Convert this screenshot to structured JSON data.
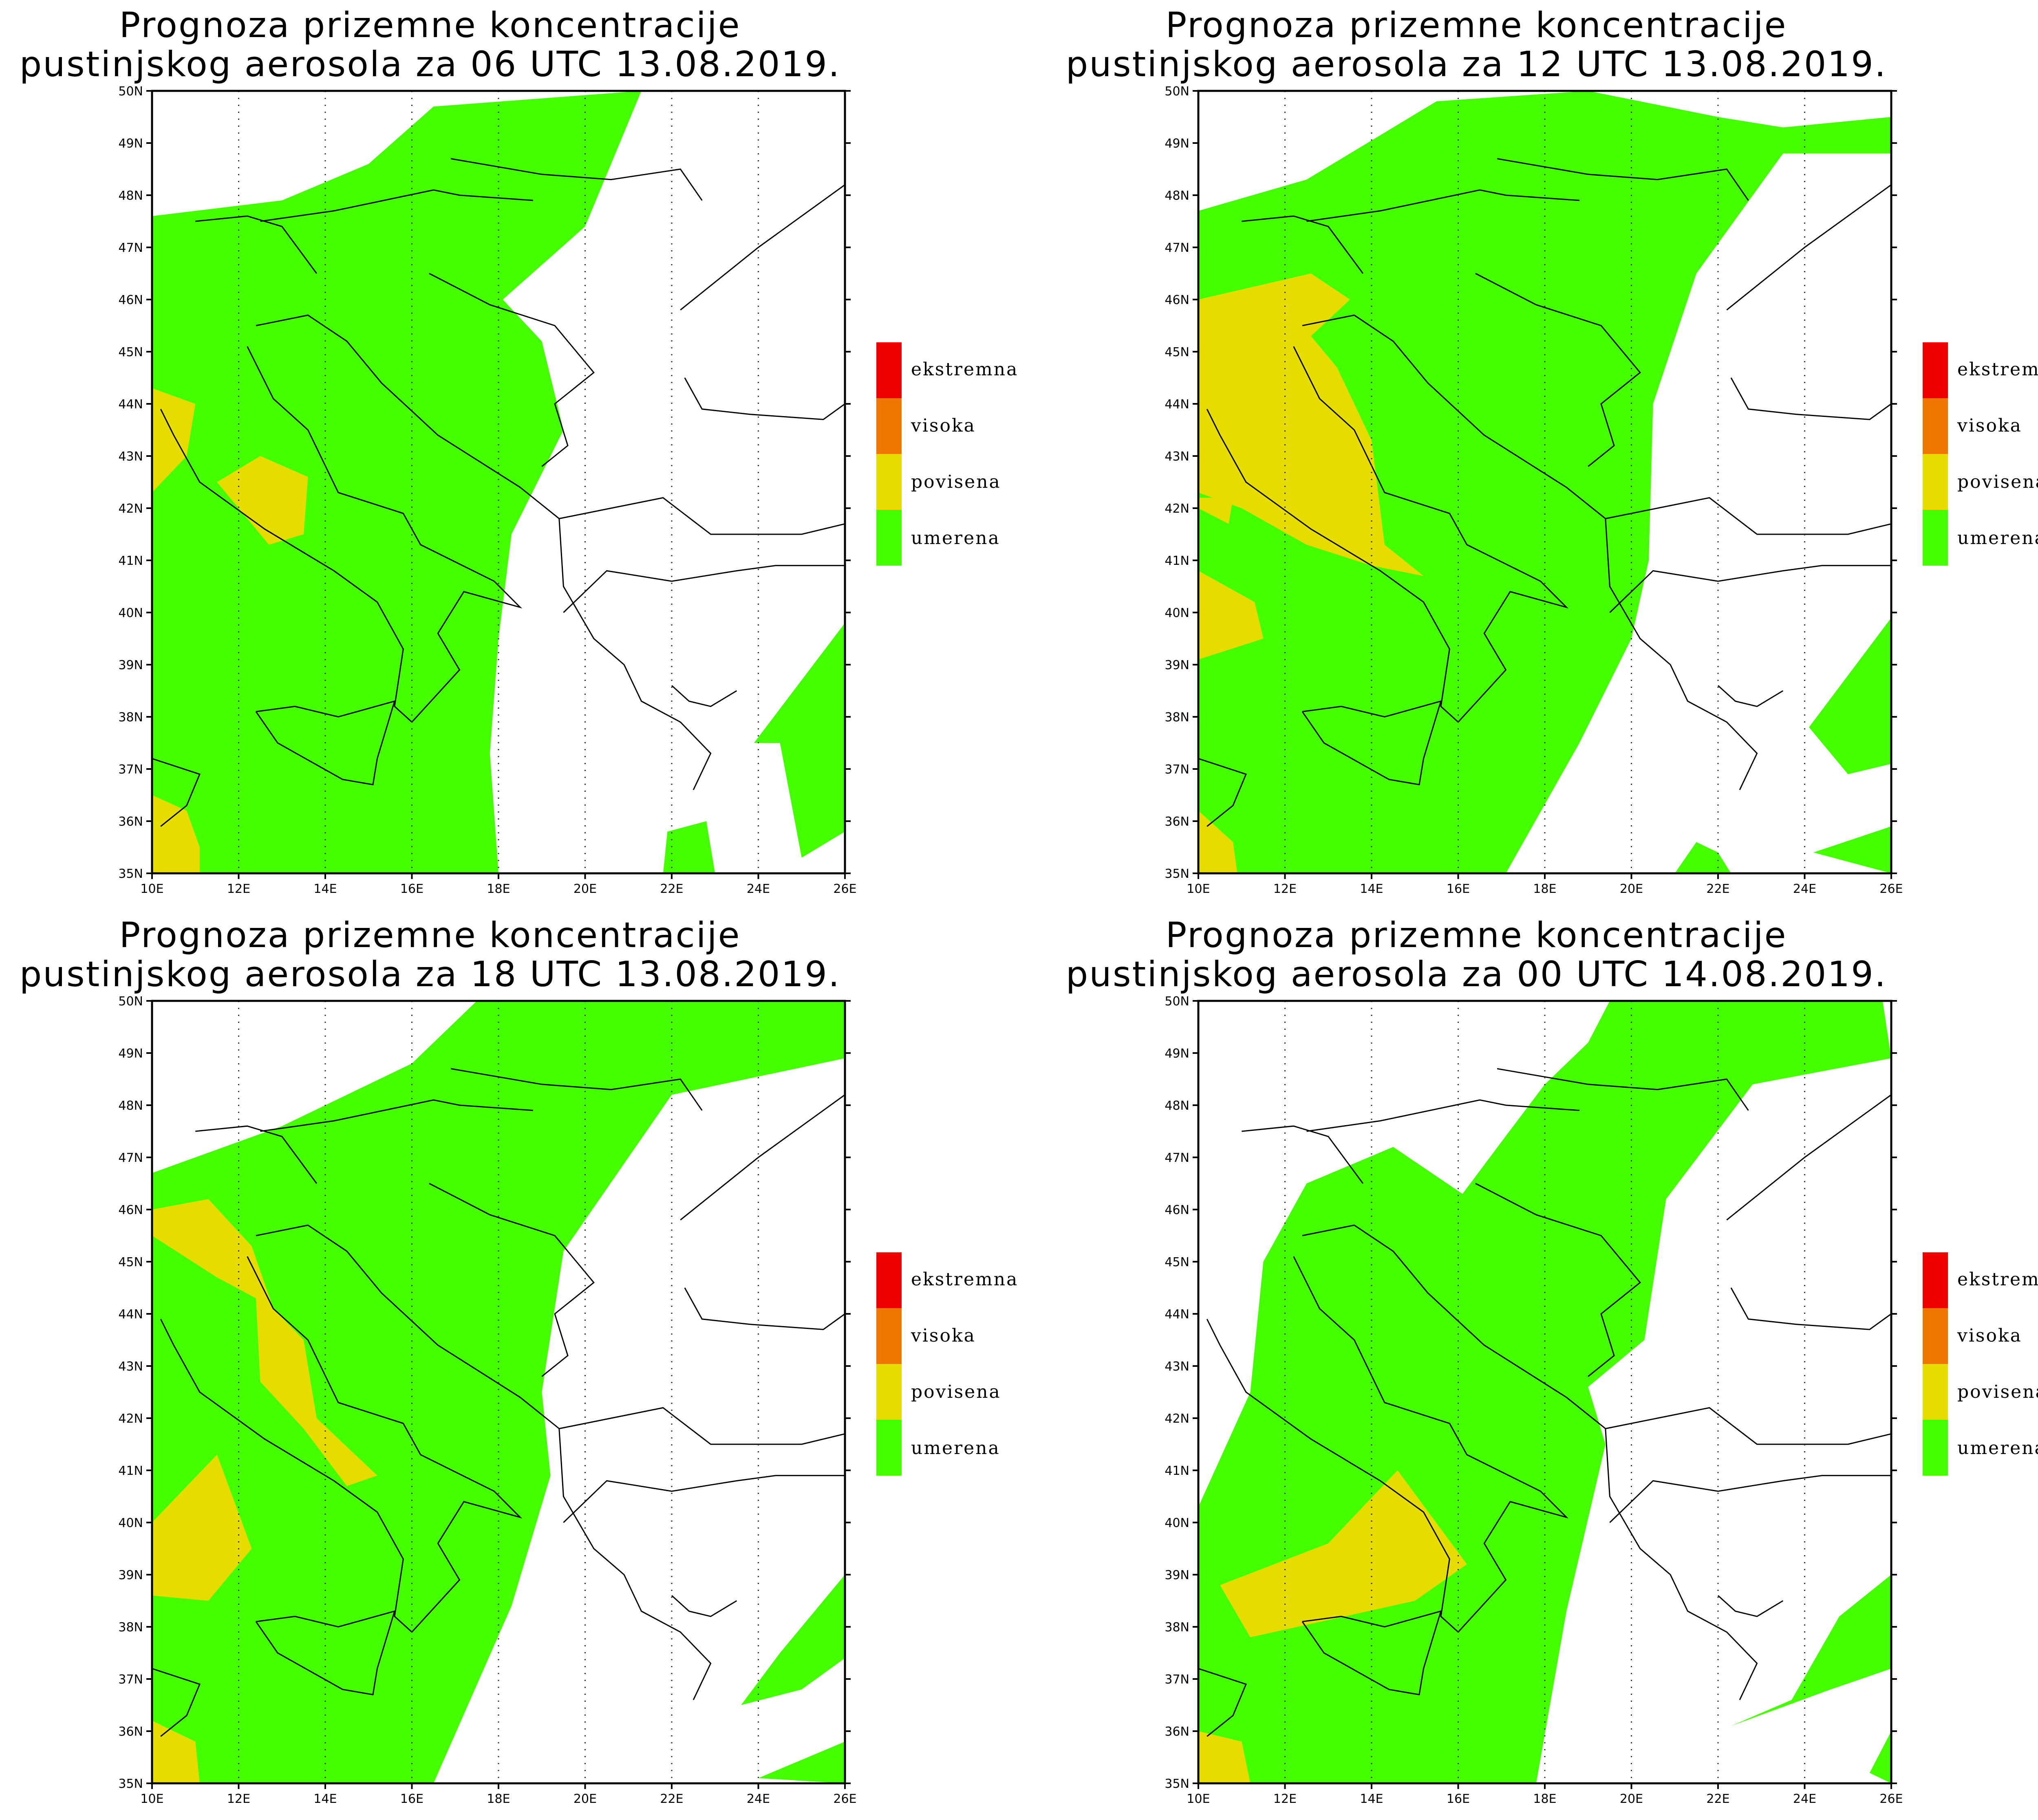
{
  "panels": [
    {
      "title_line1": "Prognoza prizemne koncentracije",
      "title_line2": "pustinjskog aerosola za 06 UTC 13.08.2019."
    },
    {
      "title_line1": "Prognoza prizemne koncentracije",
      "title_line2": "pustinjskog aerosola za 12 UTC 13.08.2019."
    },
    {
      "title_line1": "Prognoza prizemne koncentracije",
      "title_line2": "pustinjskog aerosola za 18 UTC 13.08.2019."
    },
    {
      "title_line1": "Prognoza prizemne koncentracije",
      "title_line2": "pustinjskog aerosola za 00 UTC 14.08.2019."
    }
  ],
  "axes": {
    "lat_ticks": [
      "35N",
      "36N",
      "37N",
      "38N",
      "39N",
      "40N",
      "41N",
      "42N",
      "43N",
      "44N",
      "45N",
      "46N",
      "47N",
      "48N",
      "49N",
      "50N"
    ],
    "lon_ticks": [
      "10E",
      "12E",
      "14E",
      "16E",
      "18E",
      "20E",
      "22E",
      "24E",
      "26E"
    ]
  },
  "legend": {
    "items": [
      {
        "label": "ekstremna",
        "color": "#ee0000"
      },
      {
        "label": "visoka",
        "color": "#ee7700"
      },
      {
        "label": "povisena",
        "color": "#e6dc00"
      },
      {
        "label": "umerena",
        "color": "#44ff00"
      }
    ]
  },
  "colors": {
    "umerena": "#44ff00",
    "povisena": "#e6dc00",
    "background": "#ffffff",
    "border": "#000000"
  }
}
